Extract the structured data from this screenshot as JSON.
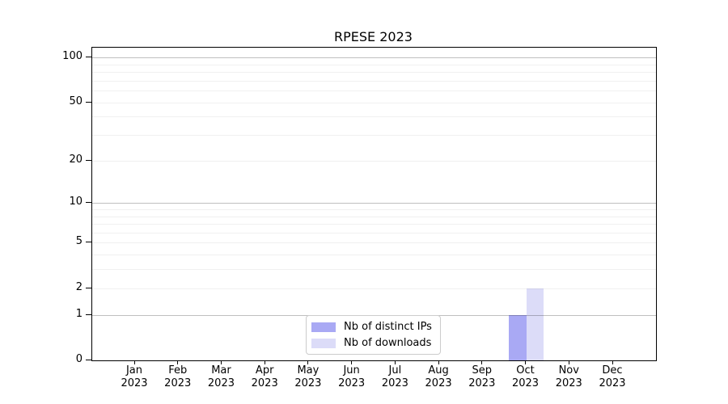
{
  "chart_data": {
    "type": "bar",
    "title": "RPESE 2023",
    "categories": [
      "Jan 2023",
      "Feb 2023",
      "Mar 2023",
      "Apr 2023",
      "May 2023",
      "Jun 2023",
      "Jul 2023",
      "Aug 2023",
      "Sep 2023",
      "Oct 2023",
      "Nov 2023",
      "Dec 2023"
    ],
    "series": [
      {
        "name": "Nb of distinct IPs",
        "color": "#a9a9f4",
        "values": [
          0,
          0,
          0,
          0,
          0,
          0,
          0,
          0,
          0,
          1,
          0,
          0
        ]
      },
      {
        "name": "Nb of downloads",
        "color": "#dcdcf8",
        "values": [
          0,
          0,
          0,
          0,
          0,
          0,
          0,
          0,
          0,
          2,
          0,
          0
        ]
      }
    ],
    "yscale": "log1p",
    "ylim": [
      0,
      117
    ],
    "y_ticks": [
      0,
      1,
      2,
      5,
      10,
      20,
      50,
      100
    ],
    "grid_major": [
      1,
      10,
      100
    ],
    "grid_minor": [
      2,
      3,
      4,
      5,
      6,
      7,
      8,
      9,
      20,
      30,
      40,
      50,
      60,
      70,
      80,
      90
    ],
    "grid": "horizontal-only",
    "legend_position": "lower-center"
  },
  "colors": {
    "background": "#ffffff",
    "axis": "#000000",
    "grid_major": "#c0c0c0",
    "grid_minor": "#efefef",
    "legend_border": "#cccccc"
  }
}
